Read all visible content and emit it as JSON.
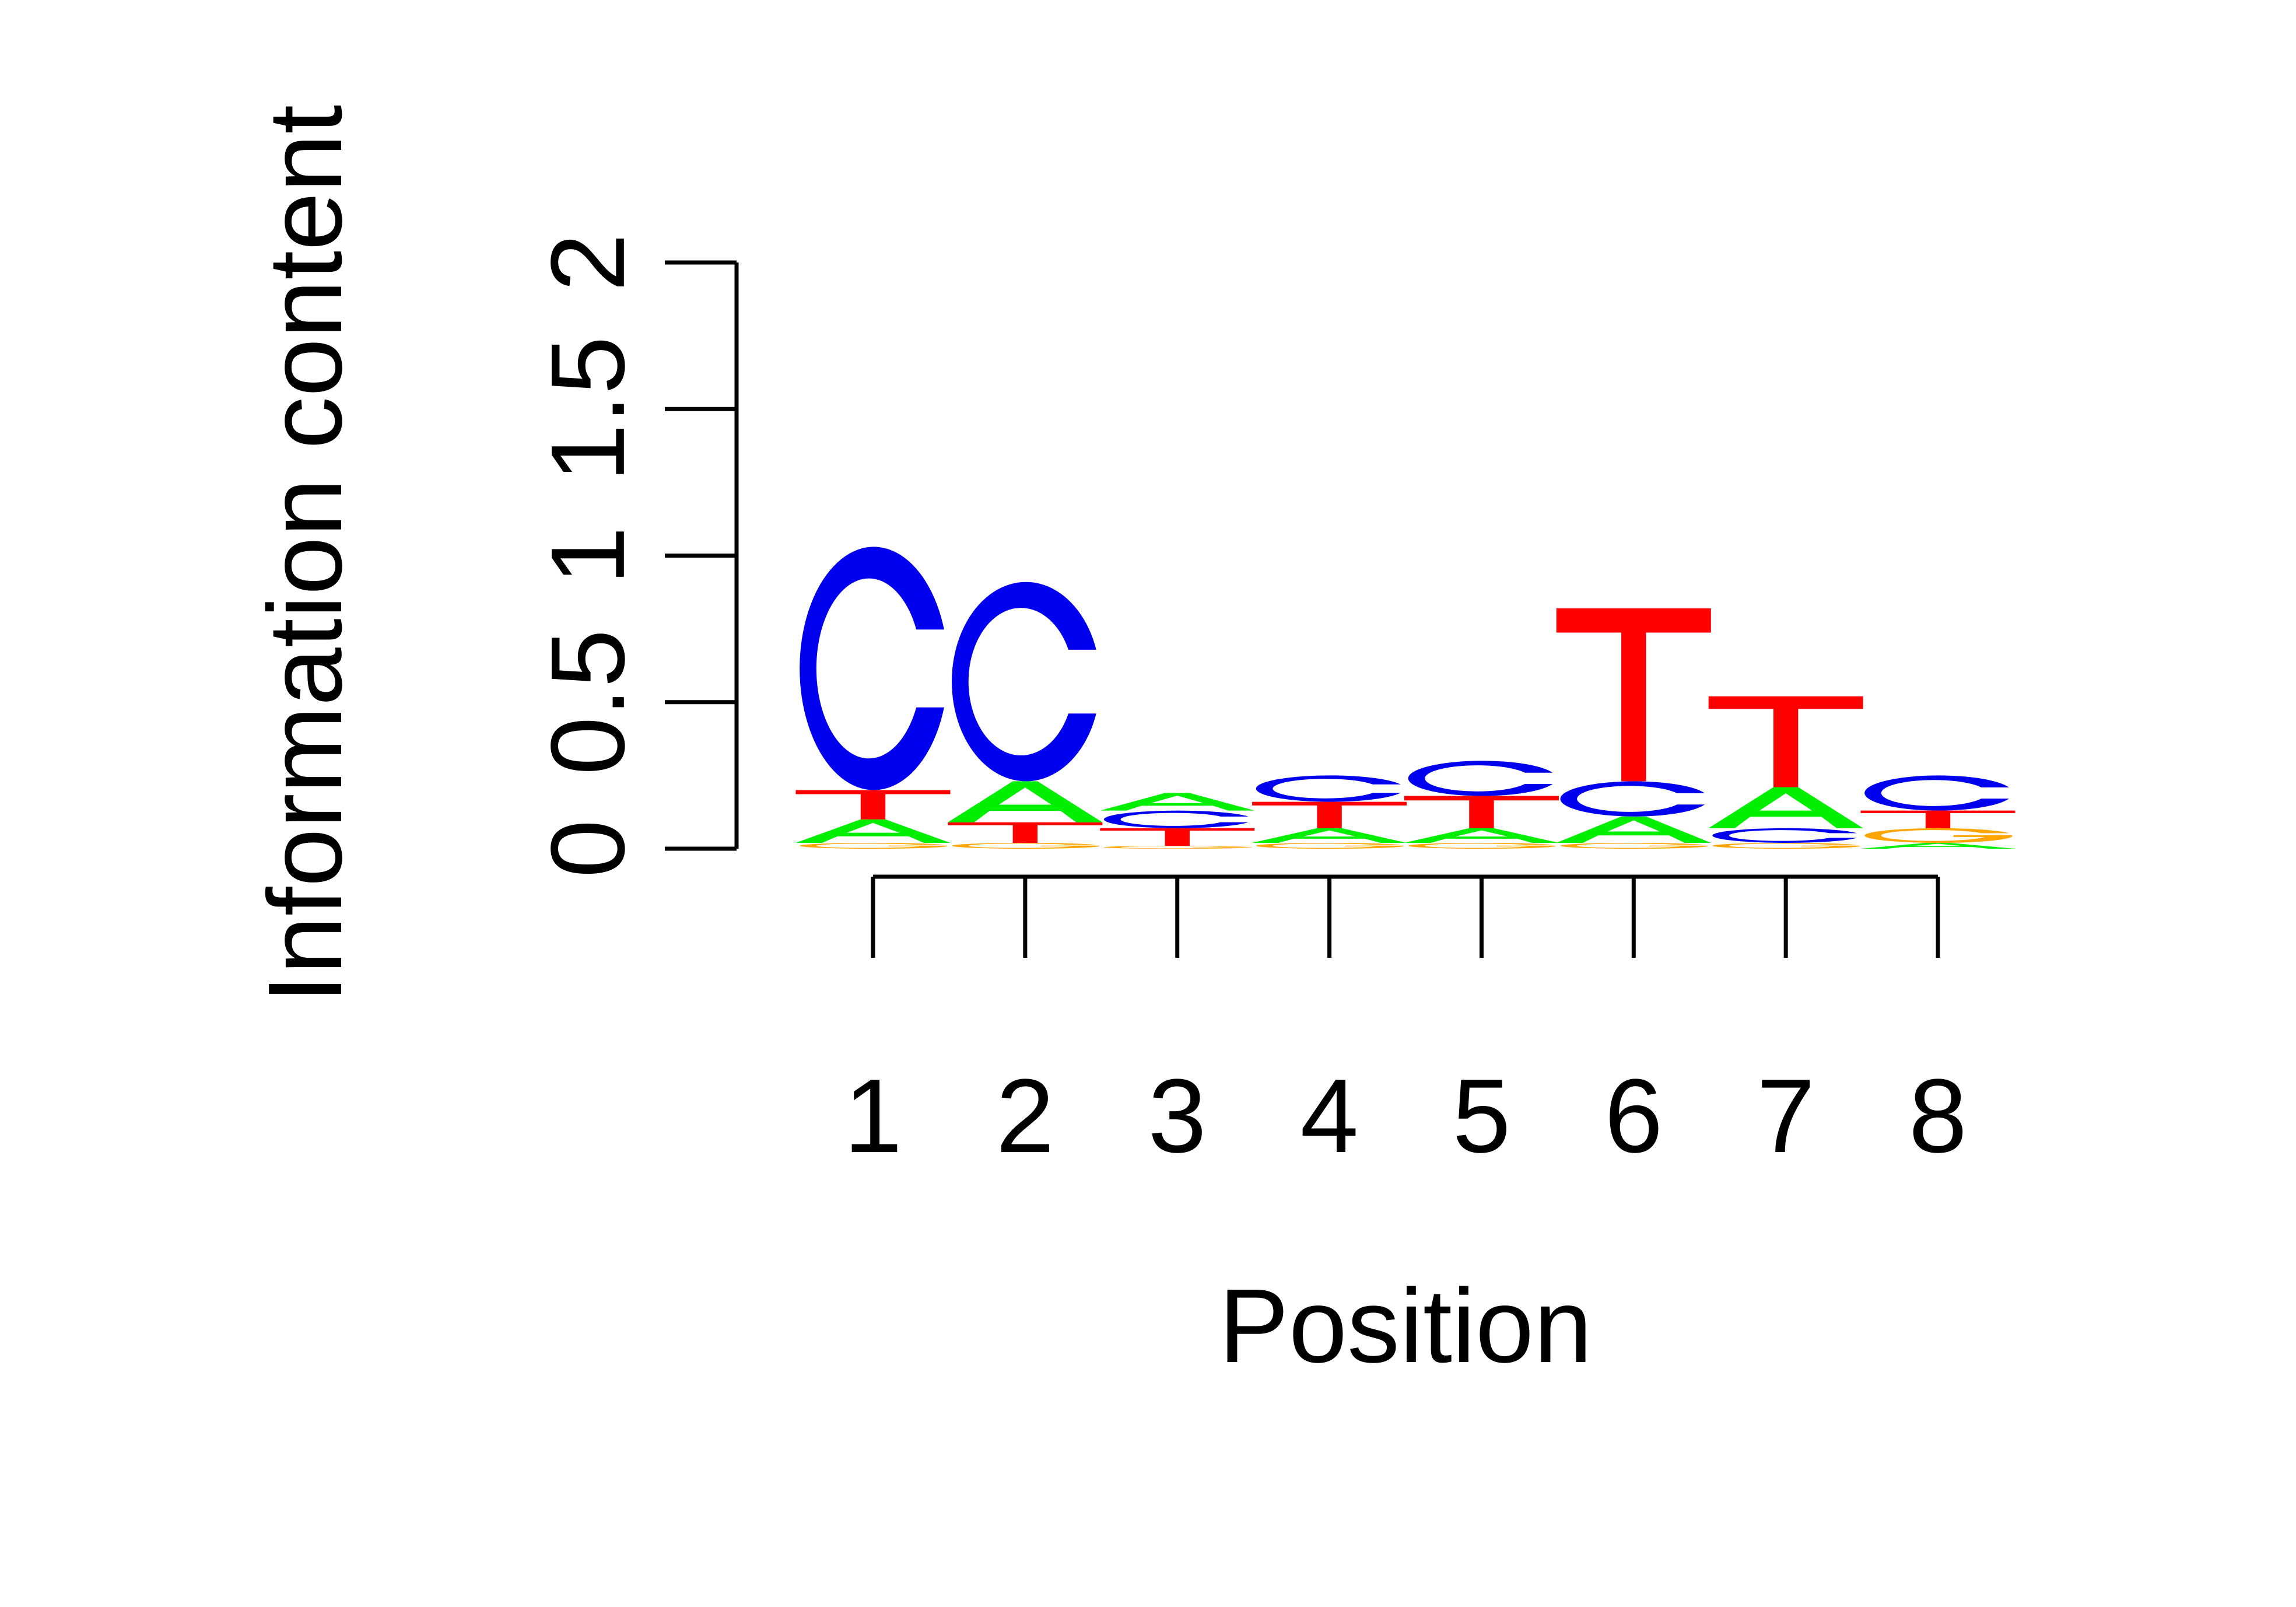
{
  "chart_data": {
    "type": "sequence-logo",
    "xlabel": "Position",
    "ylabel": "Information content",
    "ylim": [
      0,
      2
    ],
    "y_ticks": [
      "0",
      "0.5",
      "1",
      "1.5",
      "2"
    ],
    "x_ticks": [
      "1",
      "2",
      "3",
      "4",
      "5",
      "6",
      "7",
      "8"
    ],
    "colors": {
      "A": "#00ee00",
      "C": "#0000ee",
      "G": "#ffa500",
      "T": "#ff0000"
    },
    "positions": [
      {
        "position": "1",
        "stack": [
          {
            "letter": "G",
            "height": 0.02
          },
          {
            "letter": "A",
            "height": 0.08
          },
          {
            "letter": "T",
            "height": 0.1
          },
          {
            "letter": "C",
            "height": 0.83
          }
        ]
      },
      {
        "position": "2",
        "stack": [
          {
            "letter": "G",
            "height": 0.02
          },
          {
            "letter": "T",
            "height": 0.07
          },
          {
            "letter": "A",
            "height": 0.14
          },
          {
            "letter": "C",
            "height": 0.68
          }
        ]
      },
      {
        "position": "3",
        "stack": [
          {
            "letter": "G",
            "height": 0.01
          },
          {
            "letter": "T",
            "height": 0.06
          },
          {
            "letter": "C",
            "height": 0.06
          },
          {
            "letter": "A",
            "height": 0.06
          }
        ]
      },
      {
        "position": "4",
        "stack": [
          {
            "letter": "G",
            "height": 0.02
          },
          {
            "letter": "A",
            "height": 0.05
          },
          {
            "letter": "T",
            "height": 0.09
          },
          {
            "letter": "C",
            "height": 0.09
          }
        ]
      },
      {
        "position": "5",
        "stack": [
          {
            "letter": "G",
            "height": 0.02
          },
          {
            "letter": "A",
            "height": 0.05
          },
          {
            "letter": "T",
            "height": 0.11
          },
          {
            "letter": "C",
            "height": 0.12
          }
        ]
      },
      {
        "position": "6",
        "stack": [
          {
            "letter": "G",
            "height": 0.02
          },
          {
            "letter": "A",
            "height": 0.09
          },
          {
            "letter": "C",
            "height": 0.12
          },
          {
            "letter": "T",
            "height": 0.59
          }
        ]
      },
      {
        "position": "7",
        "stack": [
          {
            "letter": "G",
            "height": 0.02
          },
          {
            "letter": "C",
            "height": 0.05
          },
          {
            "letter": "A",
            "height": 0.14
          },
          {
            "letter": "T",
            "height": 0.31
          }
        ]
      },
      {
        "position": "8",
        "stack": [
          {
            "letter": "A",
            "height": 0.02
          },
          {
            "letter": "G",
            "height": 0.05
          },
          {
            "letter": "T",
            "height": 0.06
          },
          {
            "letter": "C",
            "height": 0.12
          }
        ]
      }
    ]
  }
}
